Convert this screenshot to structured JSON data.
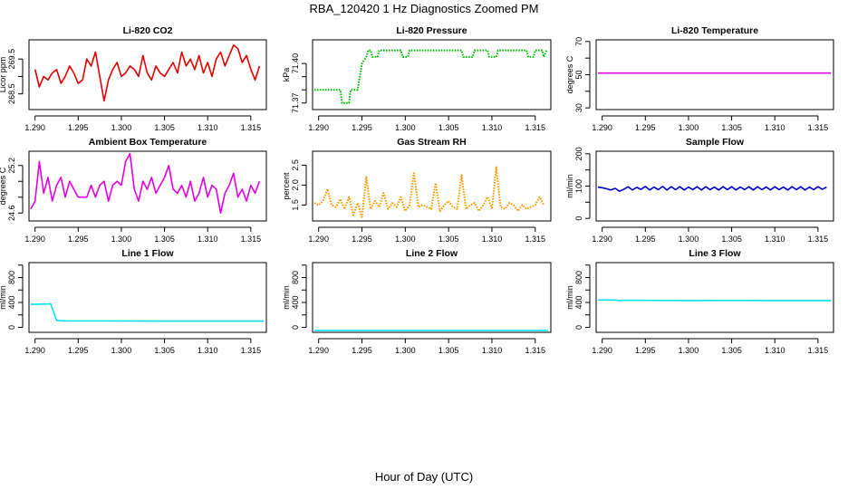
{
  "title": "RBA_120420  1 Hz Diagnostics Zoomed PM",
  "xlabel": "Hour of Day (UTC)",
  "chart_data": [
    {
      "type": "line",
      "title": "Li-820 CO2",
      "ylabel": "Licor ppm",
      "color": "#e00000",
      "style": "solid",
      "xlim": [
        1.2893,
        1.3168
      ],
      "ylim": [
        268.05,
        270.05
      ],
      "yticks": [
        268.5,
        269.0,
        269.5
      ],
      "ytick_labels": [
        "268.5",
        "",
        "269.5"
      ],
      "xticks": [
        1.29,
        1.295,
        1.3,
        1.305,
        1.31,
        1.315
      ],
      "xtick_labels": [
        "1.290",
        "1.295",
        "1.300",
        "1.305",
        "1.310",
        "1.315"
      ],
      "x": [
        1.29,
        1.2905,
        1.291,
        1.2915,
        1.292,
        1.2925,
        1.293,
        1.2935,
        1.294,
        1.2945,
        1.295,
        1.2955,
        1.296,
        1.2965,
        1.297,
        1.2975,
        1.298,
        1.2985,
        1.299,
        1.2995,
        1.3,
        1.3005,
        1.301,
        1.3015,
        1.302,
        1.3025,
        1.303,
        1.3035,
        1.304,
        1.3045,
        1.305,
        1.3055,
        1.306,
        1.3065,
        1.307,
        1.3075,
        1.308,
        1.3085,
        1.309,
        1.3095,
        1.31,
        1.3105,
        1.311,
        1.3115,
        1.312,
        1.3125,
        1.313,
        1.3135,
        1.314,
        1.3145,
        1.315,
        1.3155,
        1.316
      ],
      "y": [
        269.2,
        268.7,
        269.0,
        268.9,
        269.1,
        269.2,
        268.8,
        269.0,
        269.3,
        269.1,
        268.8,
        268.9,
        269.5,
        269.3,
        269.7,
        269.0,
        268.3,
        268.9,
        269.2,
        269.4,
        269.0,
        269.1,
        269.3,
        269.2,
        269.0,
        269.6,
        269.1,
        268.9,
        269.3,
        269.1,
        269.0,
        269.2,
        269.4,
        269.1,
        269.7,
        269.3,
        269.5,
        269.2,
        269.6,
        269.1,
        269.4,
        269.0,
        269.5,
        269.7,
        269.3,
        269.6,
        269.9,
        269.8,
        269.4,
        269.6,
        269.2,
        268.9,
        269.3
      ]
    },
    {
      "type": "line",
      "title": "Li-820 Pressure",
      "ylabel": "kPa",
      "color": "#00bb00",
      "style": "dotted",
      "xlim": [
        1.2893,
        1.3168
      ],
      "ylim": [
        71.365,
        71.418
      ],
      "yticks": [
        71.37,
        71.38,
        71.39,
        71.4
      ],
      "ytick_labels": [
        "71.37",
        "",
        "",
        "71.40"
      ],
      "xticks": [
        1.29,
        1.295,
        1.3,
        1.305,
        1.31,
        1.315
      ],
      "xtick_labels": [
        "1.290",
        "1.295",
        "1.300",
        "1.305",
        "1.310",
        "1.315"
      ],
      "x": [
        1.2895,
        1.2925,
        1.2927,
        1.2935,
        1.2937,
        1.2945,
        1.295,
        1.2955,
        1.2957,
        1.296,
        1.2962,
        1.2968,
        1.297,
        1.2995,
        1.2997,
        1.3003,
        1.3005,
        1.3065,
        1.3067,
        1.3078,
        1.308,
        1.3095,
        1.3097,
        1.3105,
        1.3107,
        1.314,
        1.3142,
        1.3148,
        1.315,
        1.3158,
        1.316,
        1.3163
      ],
      "y": [
        71.38,
        71.38,
        71.37,
        71.37,
        71.38,
        71.38,
        71.4,
        71.405,
        71.41,
        71.41,
        71.405,
        71.405,
        71.41,
        71.41,
        71.405,
        71.405,
        71.41,
        71.41,
        71.405,
        71.405,
        71.41,
        71.41,
        71.405,
        71.405,
        71.41,
        71.41,
        71.405,
        71.405,
        71.41,
        71.41,
        71.405,
        71.41
      ]
    },
    {
      "type": "line",
      "title": "Li-820 Temperature",
      "ylabel": "degrees C",
      "color": "#e000e0",
      "style": "solid",
      "xlim": [
        1.2893,
        1.3168
      ],
      "ylim": [
        29,
        71
      ],
      "yticks": [
        30,
        40,
        50,
        60,
        70
      ],
      "ytick_labels": [
        "30",
        "",
        "50",
        "",
        "70"
      ],
      "xticks": [
        1.29,
        1.295,
        1.3,
        1.305,
        1.31,
        1.315
      ],
      "xtick_labels": [
        "1.290",
        "1.295",
        "1.300",
        "1.305",
        "1.310",
        "1.315"
      ],
      "x": [
        1.2895,
        1.3165
      ],
      "y": [
        51,
        51
      ]
    },
    {
      "type": "line",
      "title": "Ambient Box Temperature",
      "ylabel": "degrees C",
      "color": "#e000e0",
      "style": "solid",
      "xlim": [
        1.2893,
        1.3168
      ],
      "ylim": [
        24.5,
        25.38
      ],
      "yticks": [
        24.6,
        24.8,
        25.0,
        25.2
      ],
      "ytick_labels": [
        "24.6",
        "",
        "",
        "25.2"
      ],
      "xticks": [
        1.29,
        1.295,
        1.3,
        1.305,
        1.31,
        1.315
      ],
      "xtick_labels": [
        "1.290",
        "1.295",
        "1.300",
        "1.305",
        "1.310",
        "1.315"
      ],
      "x": [
        1.2895,
        1.29,
        1.2905,
        1.291,
        1.2915,
        1.292,
        1.2925,
        1.293,
        1.2935,
        1.294,
        1.2945,
        1.295,
        1.2955,
        1.296,
        1.2965,
        1.297,
        1.2975,
        1.298,
        1.2985,
        1.299,
        1.2995,
        1.3,
        1.3005,
        1.301,
        1.3015,
        1.302,
        1.3025,
        1.303,
        1.3035,
        1.304,
        1.3045,
        1.305,
        1.3055,
        1.306,
        1.3065,
        1.307,
        1.3075,
        1.308,
        1.3085,
        1.309,
        1.3095,
        1.31,
        1.3105,
        1.311,
        1.3115,
        1.312,
        1.3125,
        1.313,
        1.3135,
        1.314,
        1.3145,
        1.315,
        1.3155,
        1.316
      ],
      "y": [
        24.65,
        24.75,
        25.25,
        24.85,
        25.05,
        24.75,
        24.95,
        25.05,
        24.8,
        25.0,
        24.9,
        24.8,
        24.8,
        24.8,
        24.95,
        24.8,
        24.95,
        25.0,
        24.75,
        24.95,
        25.0,
        24.95,
        25.25,
        25.35,
        24.9,
        24.75,
        25.0,
        24.9,
        25.05,
        24.85,
        24.95,
        25.05,
        25.2,
        24.9,
        24.85,
        24.95,
        24.8,
        25.0,
        24.75,
        24.85,
        25.05,
        24.8,
        24.95,
        24.9,
        24.6,
        24.85,
        24.95,
        25.1,
        24.8,
        24.9,
        24.75,
        24.95,
        24.85,
        25.0
      ]
    },
    {
      "type": "line",
      "title": "Gas Stream RH",
      "ylabel": "percent",
      "color": "#ff9900",
      "style": "dotted",
      "xlim": [
        1.2893,
        1.3168
      ],
      "ylim": [
        1.1,
        2.85
      ],
      "yticks": [
        1.5,
        2.0,
        2.5
      ],
      "ytick_labels": [
        "1.5",
        "2.0",
        "2.5"
      ],
      "xticks": [
        1.29,
        1.295,
        1.3,
        1.305,
        1.31,
        1.315
      ],
      "xtick_labels": [
        "1.290",
        "1.295",
        "1.300",
        "1.305",
        "1.310",
        "1.315"
      ],
      "x": [
        1.2895,
        1.29,
        1.2905,
        1.291,
        1.2915,
        1.292,
        1.2925,
        1.293,
        1.2935,
        1.294,
        1.2945,
        1.295,
        1.2955,
        1.296,
        1.2965,
        1.297,
        1.2975,
        1.298,
        1.2985,
        1.299,
        1.2995,
        1.3,
        1.3005,
        1.301,
        1.3015,
        1.302,
        1.3025,
        1.303,
        1.3035,
        1.304,
        1.3045,
        1.305,
        1.3055,
        1.306,
        1.3065,
        1.307,
        1.3075,
        1.308,
        1.3085,
        1.309,
        1.3095,
        1.31,
        1.3105,
        1.311,
        1.3115,
        1.312,
        1.3125,
        1.313,
        1.3135,
        1.314,
        1.3145,
        1.315,
        1.3155,
        1.316
      ],
      "y": [
        1.55,
        1.5,
        1.6,
        1.9,
        1.5,
        1.45,
        1.65,
        1.4,
        1.7,
        1.25,
        1.55,
        1.2,
        2.2,
        1.4,
        1.6,
        1.45,
        1.8,
        1.4,
        1.55,
        1.45,
        1.7,
        1.35,
        1.5,
        2.3,
        1.45,
        1.5,
        1.45,
        1.4,
        2.05,
        1.35,
        1.5,
        1.6,
        1.45,
        1.4,
        2.25,
        1.4,
        1.5,
        1.55,
        1.35,
        1.5,
        1.7,
        1.4,
        2.45,
        1.45,
        1.4,
        1.55,
        1.5,
        1.35,
        1.5,
        1.4,
        1.45,
        1.5,
        1.7,
        1.5
      ]
    },
    {
      "type": "line",
      "title": "Sample Flow",
      "ylabel": "ml/min",
      "color": "#0000cc",
      "style": "solid",
      "xlim": [
        1.2893,
        1.3168
      ],
      "ylim": [
        -8,
        208
      ],
      "yticks": [
        0,
        50,
        100,
        150,
        200
      ],
      "ytick_labels": [
        "0",
        "",
        "100",
        "",
        "200"
      ],
      "xticks": [
        1.29,
        1.295,
        1.3,
        1.305,
        1.31,
        1.315
      ],
      "xtick_labels": [
        "1.290",
        "1.295",
        "1.300",
        "1.305",
        "1.310",
        "1.315"
      ],
      "x": [
        1.2895,
        1.29,
        1.2905,
        1.291,
        1.2915,
        1.292,
        1.2925,
        1.293,
        1.2935,
        1.294,
        1.2945,
        1.295,
        1.2955,
        1.296,
        1.2965,
        1.297,
        1.2975,
        1.298,
        1.2985,
        1.299,
        1.2995,
        1.3,
        1.3005,
        1.301,
        1.3015,
        1.302,
        1.3025,
        1.303,
        1.3035,
        1.304,
        1.3045,
        1.305,
        1.3055,
        1.306,
        1.3065,
        1.307,
        1.3075,
        1.308,
        1.3085,
        1.309,
        1.3095,
        1.31,
        1.3105,
        1.311,
        1.3115,
        1.312,
        1.3125,
        1.313,
        1.3135,
        1.314,
        1.3145,
        1.315,
        1.3155,
        1.316
      ],
      "y": [
        97,
        95,
        92,
        88,
        93,
        84,
        90,
        98,
        88,
        96,
        90,
        99,
        88,
        97,
        89,
        99,
        88,
        98,
        89,
        98,
        88,
        97,
        89,
        98,
        88,
        98,
        89,
        97,
        88,
        98,
        89,
        98,
        88,
        97,
        89,
        98,
        88,
        98,
        89,
        97,
        88,
        98,
        89,
        97,
        88,
        98,
        89,
        98,
        88,
        97,
        89,
        98,
        90,
        97
      ]
    },
    {
      "type": "line",
      "title": "Line 1 Flow",
      "ylabel": "ml/min",
      "color": "#00e5ee",
      "style": "solid",
      "xlim": [
        1.2893,
        1.3168
      ],
      "ylim": [
        -80,
        1040
      ],
      "yticks": [
        0,
        200,
        400,
        600,
        800,
        1000
      ],
      "ytick_labels": [
        "0",
        "",
        "400",
        "",
        "800",
        ""
      ],
      "xticks": [
        1.29,
        1.295,
        1.3,
        1.305,
        1.31,
        1.315
      ],
      "xtick_labels": [
        "1.290",
        "1.295",
        "1.300",
        "1.305",
        "1.310",
        "1.315"
      ],
      "x": [
        1.2895,
        1.2915,
        1.2918,
        1.2925,
        1.2935,
        1.305,
        1.3165
      ],
      "y": [
        370,
        375,
        380,
        110,
        105,
        100,
        100
      ]
    },
    {
      "type": "line",
      "title": "Line 2 Flow",
      "ylabel": "ml/min",
      "color": "#00e5ee",
      "style": "solid",
      "xlim": [
        1.2893,
        1.3168
      ],
      "ylim": [
        -80,
        1040
      ],
      "yticks": [
        0,
        200,
        400,
        600,
        800,
        1000
      ],
      "ytick_labels": [
        "0",
        "",
        "400",
        "",
        "800",
        ""
      ],
      "xticks": [
        1.29,
        1.295,
        1.3,
        1.305,
        1.31,
        1.315
      ],
      "xtick_labels": [
        "1.290",
        "1.295",
        "1.300",
        "1.305",
        "1.310",
        "1.315"
      ],
      "x": [
        1.2895,
        1.3165
      ],
      "y": [
        -50,
        -50
      ]
    },
    {
      "type": "line",
      "title": "Line 3 Flow",
      "ylabel": "ml/min",
      "color": "#00e5ee",
      "style": "solid",
      "xlim": [
        1.2893,
        1.3168
      ],
      "ylim": [
        -80,
        1040
      ],
      "yticks": [
        0,
        200,
        400,
        600,
        800,
        1000
      ],
      "ytick_labels": [
        "0",
        "",
        "400",
        "",
        "800",
        ""
      ],
      "xticks": [
        1.29,
        1.295,
        1.3,
        1.305,
        1.31,
        1.315
      ],
      "xtick_labels": [
        "1.290",
        "1.295",
        "1.300",
        "1.305",
        "1.310",
        "1.315"
      ],
      "x": [
        1.2895,
        1.2915,
        1.292,
        1.2925,
        1.3,
        1.305,
        1.31,
        1.3165
      ],
      "y": [
        440,
        440,
        430,
        435,
        430,
        432,
        430,
        430
      ]
    }
  ]
}
